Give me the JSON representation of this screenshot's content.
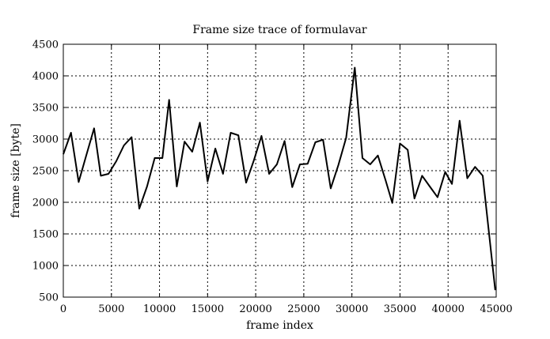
{
  "chart_data": {
    "type": "line",
    "title": "Frame size trace of formulavar",
    "xlabel": "frame index",
    "ylabel": "frame size [byte]",
    "xlim": [
      0,
      45000
    ],
    "ylim": [
      500,
      4500
    ],
    "xticks": [
      0,
      5000,
      10000,
      15000,
      20000,
      25000,
      30000,
      35000,
      40000,
      45000
    ],
    "yticks": [
      500,
      1000,
      1500,
      2000,
      2500,
      3000,
      3500,
      4000,
      4500
    ],
    "grid": true,
    "legend": "none",
    "series": [
      {
        "color": "#000000",
        "x": [
          0,
          800,
          1600,
          2400,
          3200,
          3900,
          4700,
          5500,
          6300,
          7100,
          7900,
          8700,
          9500,
          10300,
          11000,
          11800,
          12600,
          13400,
          14200,
          15000,
          15800,
          16600,
          17400,
          18200,
          19000,
          19800,
          20600,
          21400,
          22200,
          23000,
          23800,
          24600,
          25400,
          26200,
          27000,
          27800,
          28600,
          29400,
          30300,
          31100,
          31900,
          32700,
          33500,
          34200,
          35000,
          35800,
          36500,
          37300,
          38100,
          38900,
          39700,
          40400,
          41200,
          42000,
          42800,
          43600,
          44900
        ],
        "y": [
          2760,
          3100,
          2320,
          2750,
          3170,
          2420,
          2450,
          2650,
          2900,
          3030,
          1900,
          2250,
          2700,
          2700,
          3620,
          2250,
          2960,
          2800,
          3260,
          2330,
          2850,
          2450,
          3100,
          3060,
          2310,
          2660,
          3050,
          2450,
          2600,
          2970,
          2240,
          2600,
          2610,
          2950,
          2990,
          2220,
          2590,
          3020,
          4130,
          2700,
          2600,
          2740,
          2350,
          1990,
          2930,
          2830,
          2060,
          2420,
          2250,
          2080,
          2480,
          2290,
          3290,
          2380,
          2560,
          2420,
          610
        ]
      }
    ]
  }
}
